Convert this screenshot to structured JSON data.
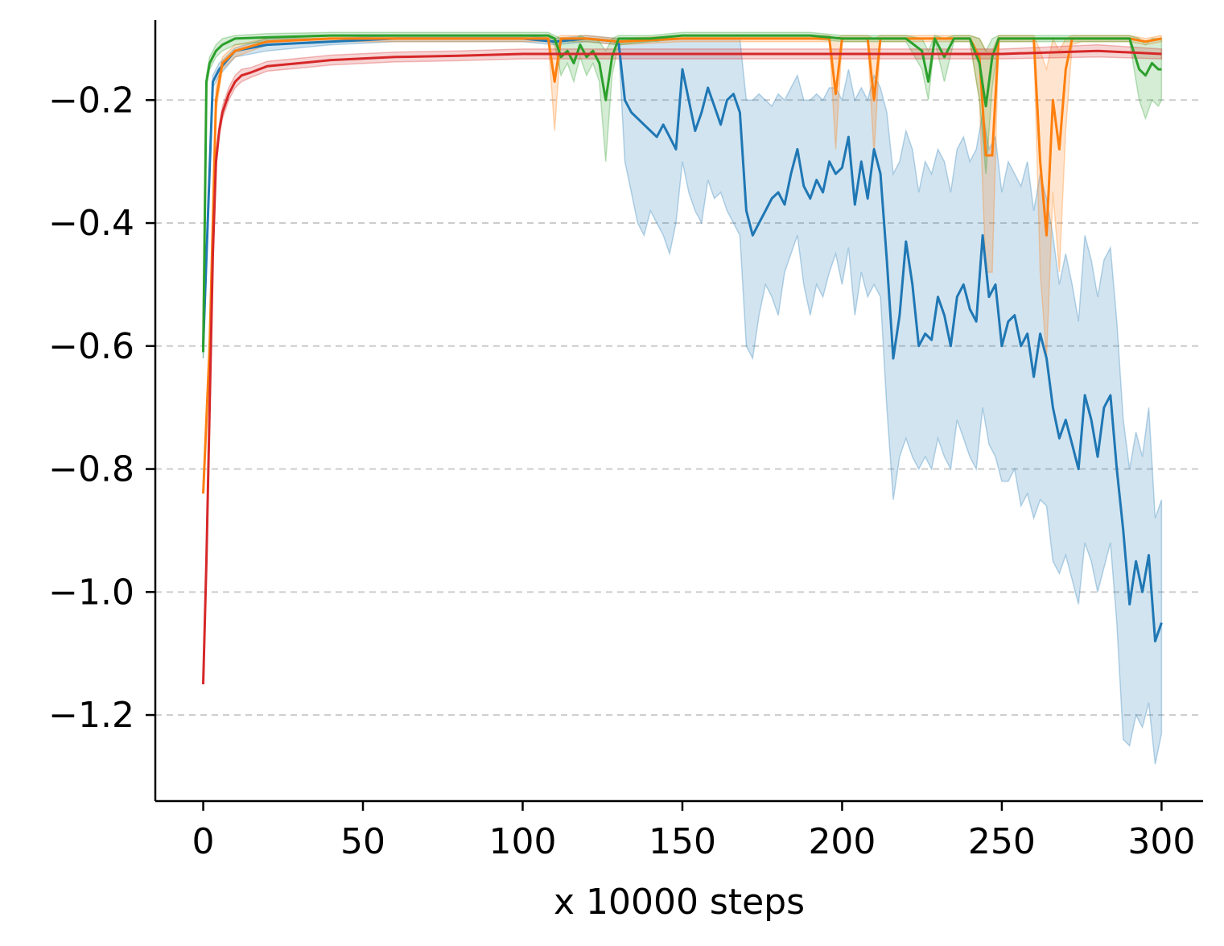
{
  "chart_data": {
    "type": "line",
    "title": "",
    "xlabel": "x 10000 steps",
    "ylabel": "",
    "xlim": [
      -15,
      313
    ],
    "ylim": [
      -1.34,
      -0.07
    ],
    "xticks": [
      0,
      50,
      100,
      150,
      200,
      250,
      300
    ],
    "xtick_labels": [
      "0",
      "50",
      "100",
      "150",
      "200",
      "250",
      "300"
    ],
    "yticks": [
      -1.2,
      -1.0,
      -0.8,
      -0.6,
      -0.4,
      -0.2
    ],
    "ytick_labels": [
      "−1.2",
      "−1.0",
      "−0.8",
      "−0.6",
      "−0.4",
      "−0.2"
    ],
    "grid": "horizontal dashed",
    "legend": "none",
    "series": [
      {
        "color": "#1f77b4",
        "x": [
          0,
          3,
          5,
          10,
          20,
          40,
          60,
          80,
          100,
          110,
          120,
          130,
          132,
          134,
          136,
          138,
          140,
          142,
          144,
          146,
          148,
          150,
          152,
          154,
          156,
          158,
          160,
          162,
          164,
          166,
          168,
          170,
          172,
          174,
          176,
          178,
          180,
          182,
          184,
          186,
          188,
          190,
          192,
          194,
          196,
          198,
          200,
          202,
          204,
          206,
          208,
          210,
          212,
          214,
          216,
          218,
          220,
          222,
          224,
          226,
          228,
          230,
          232,
          234,
          236,
          238,
          240,
          242,
          244,
          246,
          248,
          250,
          252,
          254,
          256,
          258,
          260,
          262,
          264,
          266,
          268,
          270,
          272,
          274,
          276,
          278,
          280,
          282,
          284,
          286,
          288,
          290,
          292,
          294,
          296,
          298,
          300
        ],
        "y": [
          -0.6,
          -0.17,
          -0.15,
          -0.12,
          -0.11,
          -0.105,
          -0.1,
          -0.1,
          -0.1,
          -0.105,
          -0.1,
          -0.105,
          -0.2,
          -0.22,
          -0.23,
          -0.24,
          -0.25,
          -0.26,
          -0.24,
          -0.26,
          -0.28,
          -0.15,
          -0.2,
          -0.25,
          -0.22,
          -0.18,
          -0.21,
          -0.24,
          -0.2,
          -0.19,
          -0.22,
          -0.38,
          -0.42,
          -0.4,
          -0.38,
          -0.36,
          -0.35,
          -0.37,
          -0.32,
          -0.28,
          -0.34,
          -0.36,
          -0.33,
          -0.35,
          -0.3,
          -0.32,
          -0.31,
          -0.26,
          -0.37,
          -0.3,
          -0.36,
          -0.28,
          -0.32,
          -0.46,
          -0.62,
          -0.55,
          -0.43,
          -0.5,
          -0.6,
          -0.58,
          -0.59,
          -0.52,
          -0.55,
          -0.6,
          -0.52,
          -0.5,
          -0.54,
          -0.56,
          -0.42,
          -0.52,
          -0.5,
          -0.6,
          -0.56,
          -0.55,
          -0.6,
          -0.58,
          -0.65,
          -0.58,
          -0.62,
          -0.7,
          -0.75,
          -0.72,
          -0.76,
          -0.8,
          -0.68,
          -0.72,
          -0.78,
          -0.7,
          -0.68,
          -0.8,
          -0.9,
          -1.02,
          -0.95,
          -1.0,
          -0.94,
          -1.08,
          -1.05
        ],
        "lower": [
          -0.62,
          -0.18,
          -0.16,
          -0.13,
          -0.12,
          -0.11,
          -0.105,
          -0.105,
          -0.105,
          -0.11,
          -0.105,
          -0.11,
          -0.3,
          -0.35,
          -0.4,
          -0.42,
          -0.38,
          -0.4,
          -0.42,
          -0.45,
          -0.4,
          -0.3,
          -0.35,
          -0.38,
          -0.4,
          -0.33,
          -0.36,
          -0.35,
          -0.38,
          -0.4,
          -0.42,
          -0.6,
          -0.62,
          -0.55,
          -0.5,
          -0.52,
          -0.55,
          -0.48,
          -0.45,
          -0.42,
          -0.5,
          -0.55,
          -0.5,
          -0.52,
          -0.48,
          -0.45,
          -0.5,
          -0.44,
          -0.55,
          -0.48,
          -0.52,
          -0.5,
          -0.52,
          -0.7,
          -0.85,
          -0.78,
          -0.75,
          -0.78,
          -0.8,
          -0.78,
          -0.8,
          -0.75,
          -0.78,
          -0.8,
          -0.72,
          -0.75,
          -0.78,
          -0.8,
          -0.7,
          -0.76,
          -0.78,
          -0.82,
          -0.82,
          -0.8,
          -0.86,
          -0.84,
          -0.88,
          -0.85,
          -0.86,
          -0.95,
          -0.97,
          -0.94,
          -0.98,
          -1.02,
          -0.92,
          -0.95,
          -1.0,
          -0.96,
          -0.92,
          -1.05,
          -1.24,
          -1.25,
          -1.2,
          -1.22,
          -1.18,
          -1.28,
          -1.23
        ],
        "upper": [
          -0.58,
          -0.16,
          -0.14,
          -0.115,
          -0.1,
          -0.1,
          -0.095,
          -0.095,
          -0.095,
          -0.1,
          -0.095,
          -0.1,
          -0.1,
          -0.1,
          -0.105,
          -0.1,
          -0.1,
          -0.105,
          -0.1,
          -0.1,
          -0.1,
          -0.1,
          -0.1,
          -0.1,
          -0.1,
          -0.1,
          -0.1,
          -0.1,
          -0.1,
          -0.1,
          -0.1,
          -0.2,
          -0.2,
          -0.19,
          -0.2,
          -0.21,
          -0.19,
          -0.2,
          -0.18,
          -0.16,
          -0.2,
          -0.2,
          -0.19,
          -0.2,
          -0.18,
          -0.18,
          -0.2,
          -0.15,
          -0.2,
          -0.18,
          -0.2,
          -0.16,
          -0.18,
          -0.22,
          -0.32,
          -0.3,
          -0.25,
          -0.28,
          -0.35,
          -0.3,
          -0.32,
          -0.28,
          -0.3,
          -0.35,
          -0.28,
          -0.26,
          -0.3,
          -0.28,
          -0.22,
          -0.28,
          -0.26,
          -0.35,
          -0.3,
          -0.32,
          -0.34,
          -0.3,
          -0.38,
          -0.32,
          -0.36,
          -0.42,
          -0.5,
          -0.45,
          -0.5,
          -0.56,
          -0.42,
          -0.46,
          -0.52,
          -0.46,
          -0.44,
          -0.56,
          -0.72,
          -0.8,
          -0.74,
          -0.78,
          -0.7,
          -0.88,
          -0.85
        ]
      },
      {
        "color": "#ff7f0e",
        "x": [
          0,
          2,
          4,
          6,
          10,
          20,
          40,
          60,
          80,
          100,
          108,
          110,
          112,
          120,
          130,
          150,
          170,
          190,
          196,
          198,
          200,
          208,
          210,
          212,
          220,
          240,
          243,
          245,
          247,
          249,
          255,
          260,
          262,
          264,
          266,
          268,
          270,
          272,
          275,
          280,
          290,
          295,
          300
        ],
        "y": [
          -0.84,
          -0.6,
          -0.2,
          -0.14,
          -0.12,
          -0.105,
          -0.1,
          -0.1,
          -0.1,
          -0.1,
          -0.1,
          -0.17,
          -0.1,
          -0.1,
          -0.105,
          -0.1,
          -0.1,
          -0.1,
          -0.1,
          -0.19,
          -0.1,
          -0.1,
          -0.2,
          -0.1,
          -0.1,
          -0.1,
          -0.13,
          -0.29,
          -0.29,
          -0.1,
          -0.1,
          -0.1,
          -0.3,
          -0.42,
          -0.2,
          -0.28,
          -0.15,
          -0.1,
          -0.1,
          -0.1,
          -0.1,
          -0.105,
          -0.1
        ],
        "lower": [
          -0.84,
          -0.62,
          -0.22,
          -0.15,
          -0.13,
          -0.11,
          -0.105,
          -0.105,
          -0.105,
          -0.105,
          -0.105,
          -0.25,
          -0.105,
          -0.105,
          -0.11,
          -0.105,
          -0.105,
          -0.105,
          -0.105,
          -0.28,
          -0.105,
          -0.105,
          -0.29,
          -0.105,
          -0.105,
          -0.105,
          -0.2,
          -0.48,
          -0.48,
          -0.105,
          -0.105,
          -0.105,
          -0.48,
          -0.62,
          -0.35,
          -0.48,
          -0.25,
          -0.11,
          -0.105,
          -0.105,
          -0.105,
          -0.11,
          -0.105
        ],
        "upper": [
          -0.84,
          -0.58,
          -0.18,
          -0.13,
          -0.11,
          -0.1,
          -0.095,
          -0.095,
          -0.095,
          -0.095,
          -0.095,
          -0.1,
          -0.095,
          -0.095,
          -0.1,
          -0.095,
          -0.095,
          -0.095,
          -0.095,
          -0.1,
          -0.095,
          -0.095,
          -0.1,
          -0.095,
          -0.095,
          -0.095,
          -0.1,
          -0.12,
          -0.12,
          -0.095,
          -0.095,
          -0.095,
          -0.12,
          -0.15,
          -0.1,
          -0.12,
          -0.1,
          -0.095,
          -0.095,
          -0.095,
          -0.095,
          -0.1,
          -0.095
        ]
      },
      {
        "color": "#2ca02c",
        "x": [
          0,
          1,
          2,
          4,
          6,
          10,
          20,
          40,
          60,
          80,
          100,
          108,
          110,
          112,
          114,
          116,
          118,
          120,
          122,
          124,
          126,
          128,
          130,
          140,
          150,
          170,
          190,
          200,
          220,
          225,
          227,
          229,
          232,
          235,
          240,
          243,
          245,
          247,
          249,
          252,
          260,
          270,
          280,
          290,
          293,
          295,
          297,
          299,
          300
        ],
        "y": [
          -0.61,
          -0.17,
          -0.14,
          -0.12,
          -0.11,
          -0.1,
          -0.098,
          -0.095,
          -0.095,
          -0.095,
          -0.095,
          -0.095,
          -0.1,
          -0.13,
          -0.12,
          -0.14,
          -0.11,
          -0.13,
          -0.12,
          -0.14,
          -0.2,
          -0.13,
          -0.1,
          -0.1,
          -0.095,
          -0.095,
          -0.095,
          -0.1,
          -0.1,
          -0.12,
          -0.17,
          -0.1,
          -0.13,
          -0.1,
          -0.1,
          -0.14,
          -0.21,
          -0.13,
          -0.1,
          -0.1,
          -0.1,
          -0.1,
          -0.1,
          -0.1,
          -0.15,
          -0.16,
          -0.14,
          -0.15,
          -0.15
        ],
        "lower": [
          -0.62,
          -0.18,
          -0.15,
          -0.13,
          -0.12,
          -0.11,
          -0.105,
          -0.1,
          -0.1,
          -0.1,
          -0.1,
          -0.1,
          -0.11,
          -0.16,
          -0.14,
          -0.17,
          -0.13,
          -0.16,
          -0.14,
          -0.17,
          -0.3,
          -0.16,
          -0.11,
          -0.105,
          -0.1,
          -0.1,
          -0.1,
          -0.105,
          -0.105,
          -0.15,
          -0.2,
          -0.105,
          -0.17,
          -0.105,
          -0.105,
          -0.2,
          -0.32,
          -0.18,
          -0.105,
          -0.105,
          -0.105,
          -0.105,
          -0.105,
          -0.105,
          -0.2,
          -0.23,
          -0.2,
          -0.21,
          -0.2
        ],
        "upper": [
          -0.6,
          -0.16,
          -0.13,
          -0.11,
          -0.1,
          -0.095,
          -0.092,
          -0.09,
          -0.09,
          -0.09,
          -0.09,
          -0.09,
          -0.095,
          -0.1,
          -0.1,
          -0.105,
          -0.095,
          -0.1,
          -0.1,
          -0.105,
          -0.12,
          -0.1,
          -0.095,
          -0.095,
          -0.09,
          -0.09,
          -0.09,
          -0.095,
          -0.095,
          -0.1,
          -0.12,
          -0.095,
          -0.1,
          -0.095,
          -0.095,
          -0.1,
          -0.12,
          -0.1,
          -0.095,
          -0.095,
          -0.095,
          -0.095,
          -0.095,
          -0.095,
          -0.1,
          -0.11,
          -0.1,
          -0.1,
          -0.1
        ]
      },
      {
        "color": "#d62728",
        "x": [
          0,
          1,
          2,
          3,
          4,
          5,
          6,
          8,
          10,
          12,
          15,
          20,
          30,
          40,
          60,
          80,
          100,
          120,
          150,
          200,
          250,
          280,
          300
        ],
        "y": [
          -1.15,
          -0.95,
          -0.7,
          -0.45,
          -0.3,
          -0.25,
          -0.22,
          -0.19,
          -0.17,
          -0.16,
          -0.155,
          -0.145,
          -0.14,
          -0.135,
          -0.13,
          -0.128,
          -0.125,
          -0.125,
          -0.125,
          -0.125,
          -0.125,
          -0.12,
          -0.125
        ],
        "lower": [
          -1.15,
          -0.96,
          -0.71,
          -0.46,
          -0.31,
          -0.26,
          -0.23,
          -0.2,
          -0.18,
          -0.17,
          -0.163,
          -0.153,
          -0.148,
          -0.143,
          -0.138,
          -0.136,
          -0.133,
          -0.133,
          -0.133,
          -0.133,
          -0.133,
          -0.13,
          -0.133
        ],
        "upper": [
          -1.15,
          -0.94,
          -0.69,
          -0.44,
          -0.29,
          -0.24,
          -0.21,
          -0.18,
          -0.16,
          -0.15,
          -0.147,
          -0.137,
          -0.132,
          -0.127,
          -0.122,
          -0.12,
          -0.117,
          -0.117,
          -0.117,
          -0.117,
          -0.117,
          -0.11,
          -0.117
        ]
      }
    ]
  }
}
